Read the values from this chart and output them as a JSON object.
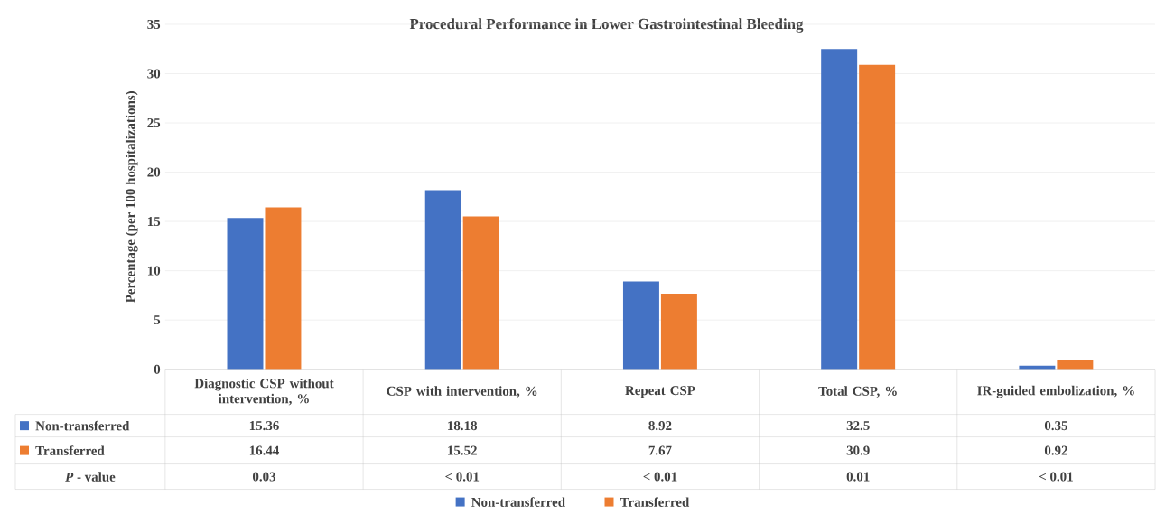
{
  "chart_data": {
    "type": "bar",
    "title": "Procedural Performance in Lower Gastrointestinal Bleeding",
    "ylabel": "Percentage (per 100 hospitalizations)",
    "categories": [
      "Diagnostic CSP without intervention, %",
      "CSP with intervention, %",
      "Repeat CSP",
      "Total CSP, %",
      "IR-guided embolization, %"
    ],
    "series": [
      {
        "name": "Non-transferred",
        "color": "#4472c4",
        "values": [
          15.36,
          18.18,
          8.92,
          32.5,
          0.35
        ]
      },
      {
        "name": "Transferred",
        "color": "#ed7d31",
        "values": [
          16.44,
          15.52,
          7.67,
          30.9,
          0.92
        ]
      }
    ],
    "ylim": [
      0,
      35
    ],
    "yticks": [
      0,
      5,
      10,
      15,
      20,
      25,
      30,
      35
    ],
    "grid": "y",
    "legend": "bottom",
    "data_labels": true,
    "annotations": [
      "*P* - value",
      "0.03",
      "< 0.01",
      "< 0.01",
      "0.01",
      "< 0.01"
    ]
  }
}
